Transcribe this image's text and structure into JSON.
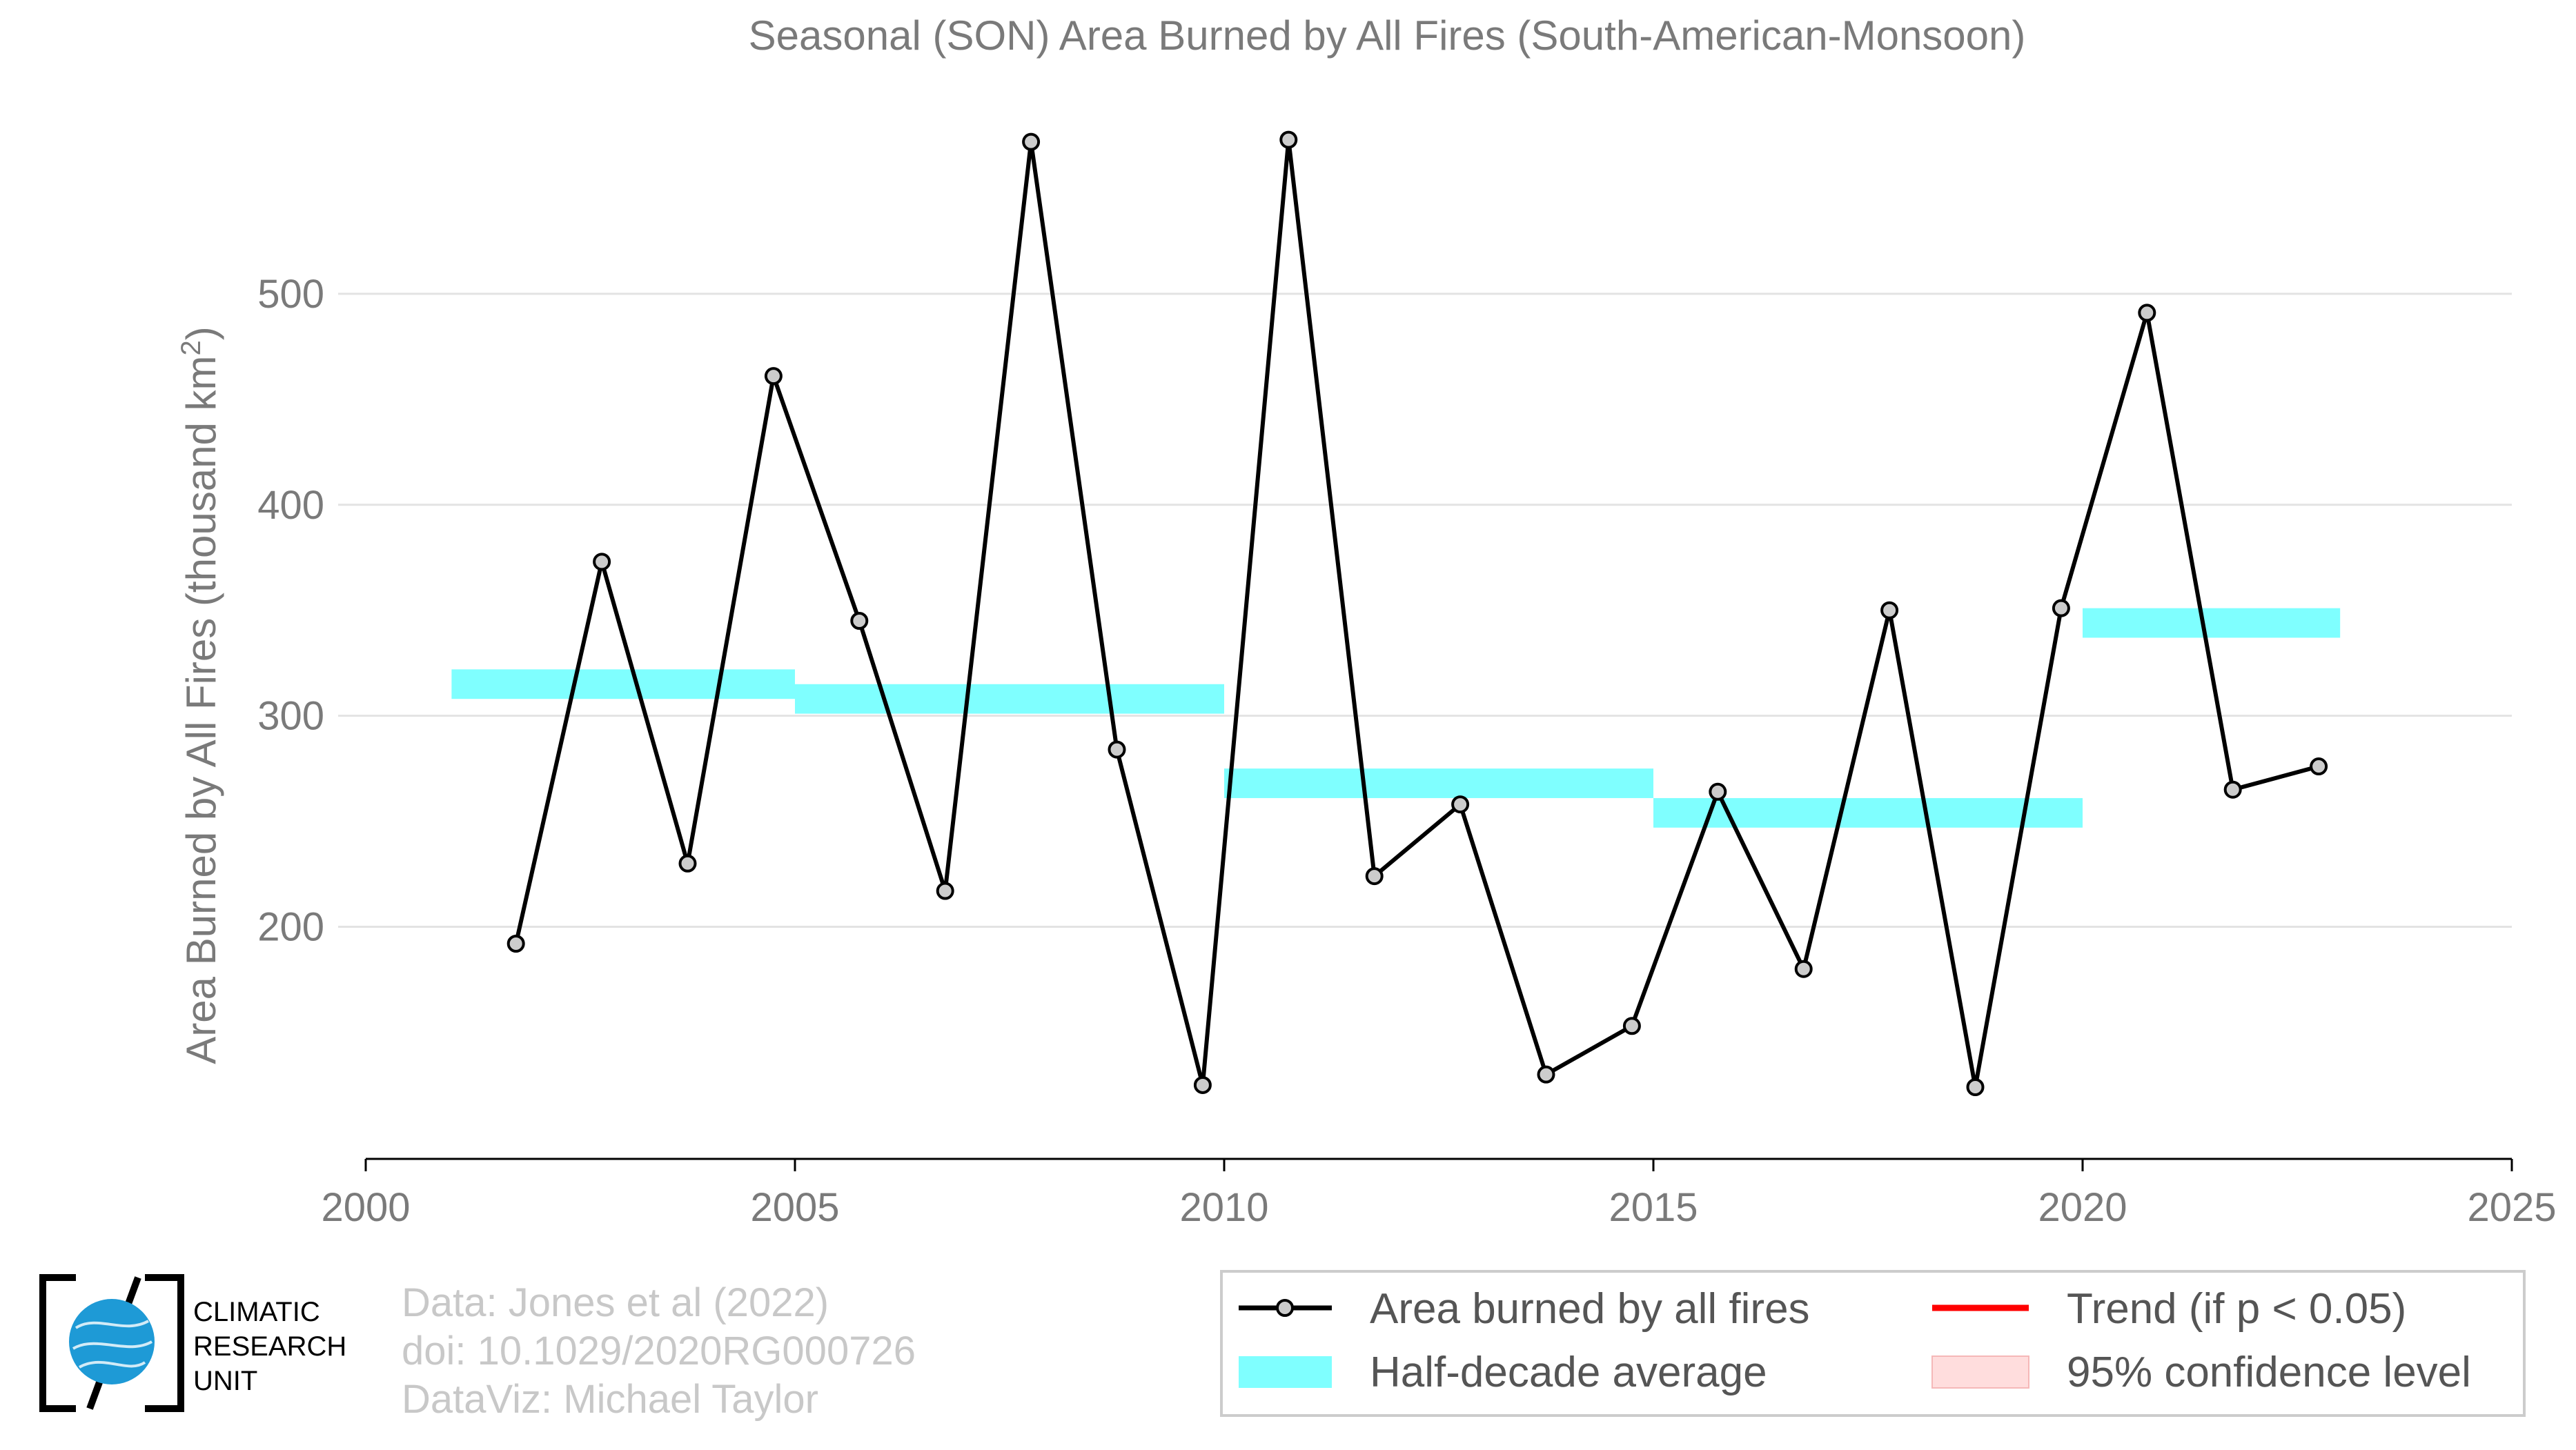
{
  "chart_data": {
    "type": "line",
    "title": "Seasonal (SON) Area Burned by All Fires (South-American-Monsoon)",
    "ylabel_main": "Area Burned by All Fires (thousand km",
    "ylabel_sup": "2",
    "ylabel_close": ")",
    "xlabel": "",
    "xlim": [
      2000,
      2025
    ],
    "ylim": [
      90,
      600
    ],
    "x_ticks": [
      2000,
      2005,
      2010,
      2015,
      2020,
      2025
    ],
    "y_ticks": [
      200,
      300,
      400,
      500
    ],
    "grid": "horizontal",
    "series": [
      {
        "name": "Area burned by all fires",
        "color": "#000000",
        "marker_fill": "#cccccc",
        "x": [
          2001.75,
          2002.75,
          2003.75,
          2004.75,
          2005.75,
          2006.75,
          2007.75,
          2008.75,
          2009.75,
          2010.75,
          2011.75,
          2012.75,
          2013.75,
          2014.75,
          2015.75,
          2016.75,
          2017.75,
          2018.75,
          2019.75,
          2020.75,
          2021.75,
          2022.75
        ],
        "y": [
          192,
          373,
          230,
          461,
          345,
          217,
          572,
          284,
          125,
          573,
          224,
          258,
          130,
          153,
          264,
          180,
          350,
          124,
          351,
          491,
          265,
          276
        ]
      },
      {
        "name": "Half-decade average",
        "color": "#7fffff",
        "segments": [
          {
            "x0": 2001,
            "x1": 2005,
            "y": 315
          },
          {
            "x0": 2005,
            "x1": 2010,
            "y": 308
          },
          {
            "x0": 2010,
            "x1": 2015,
            "y": 268
          },
          {
            "x0": 2015,
            "x1": 2020,
            "y": 254
          },
          {
            "x0": 2020,
            "x1": 2023,
            "y": 344
          }
        ]
      }
    ],
    "legend": {
      "placement": "bottom-right",
      "items": [
        {
          "label": "Area burned by all fires",
          "type": "line-marker",
          "color": "#000000"
        },
        {
          "label": "Trend (if p < 0.05)",
          "type": "line",
          "color": "#ff0000"
        },
        {
          "label": "Half-decade average",
          "type": "band",
          "color": "#7fffff"
        },
        {
          "label": "95% confidence level",
          "type": "band",
          "color": "#ffdddd"
        }
      ]
    }
  },
  "credits": [
    "Data: Jones et al (2022)",
    "doi: 10.1029/2020RG000726",
    "DataViz: Michael Taylor"
  ],
  "logo": {
    "lines": [
      "CLIMATIC",
      "RESEARCH",
      "UNIT"
    ],
    "globe_color": "#1e9ad6"
  }
}
